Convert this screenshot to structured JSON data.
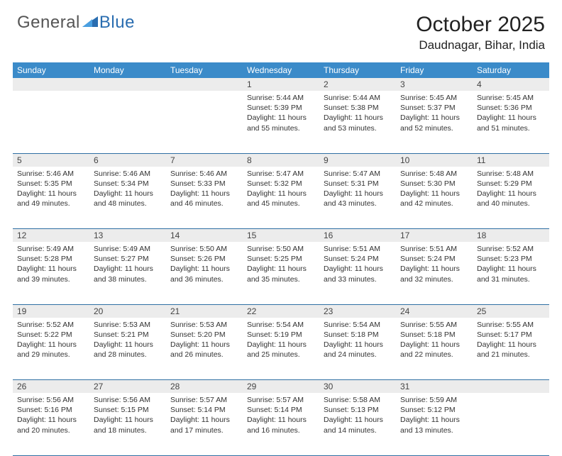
{
  "logo": {
    "text_left": "General",
    "text_right": "Blue"
  },
  "title": "October 2025",
  "location": "Daudnagar, Bihar, India",
  "colors": {
    "header_bg": "#3b8bc9",
    "header_text": "#ffffff",
    "daynum_bg": "#ececec",
    "border": "#2f6fa3",
    "body_text": "#333333",
    "logo_gray": "#555555",
    "logo_blue": "#2a6db0"
  },
  "fonts": {
    "title_size": 30,
    "location_size": 17,
    "header_size": 12,
    "cell_size": 10.5
  },
  "day_headers": [
    "Sunday",
    "Monday",
    "Tuesday",
    "Wednesday",
    "Thursday",
    "Friday",
    "Saturday"
  ],
  "weeks": [
    [
      null,
      null,
      null,
      {
        "n": "1",
        "sunrise": "5:44 AM",
        "sunset": "5:39 PM",
        "dayh": "11",
        "daym": "55"
      },
      {
        "n": "2",
        "sunrise": "5:44 AM",
        "sunset": "5:38 PM",
        "dayh": "11",
        "daym": "53"
      },
      {
        "n": "3",
        "sunrise": "5:45 AM",
        "sunset": "5:37 PM",
        "dayh": "11",
        "daym": "52"
      },
      {
        "n": "4",
        "sunrise": "5:45 AM",
        "sunset": "5:36 PM",
        "dayh": "11",
        "daym": "51"
      }
    ],
    [
      {
        "n": "5",
        "sunrise": "5:46 AM",
        "sunset": "5:35 PM",
        "dayh": "11",
        "daym": "49"
      },
      {
        "n": "6",
        "sunrise": "5:46 AM",
        "sunset": "5:34 PM",
        "dayh": "11",
        "daym": "48"
      },
      {
        "n": "7",
        "sunrise": "5:46 AM",
        "sunset": "5:33 PM",
        "dayh": "11",
        "daym": "46"
      },
      {
        "n": "8",
        "sunrise": "5:47 AM",
        "sunset": "5:32 PM",
        "dayh": "11",
        "daym": "45"
      },
      {
        "n": "9",
        "sunrise": "5:47 AM",
        "sunset": "5:31 PM",
        "dayh": "11",
        "daym": "43"
      },
      {
        "n": "10",
        "sunrise": "5:48 AM",
        "sunset": "5:30 PM",
        "dayh": "11",
        "daym": "42"
      },
      {
        "n": "11",
        "sunrise": "5:48 AM",
        "sunset": "5:29 PM",
        "dayh": "11",
        "daym": "40"
      }
    ],
    [
      {
        "n": "12",
        "sunrise": "5:49 AM",
        "sunset": "5:28 PM",
        "dayh": "11",
        "daym": "39"
      },
      {
        "n": "13",
        "sunrise": "5:49 AM",
        "sunset": "5:27 PM",
        "dayh": "11",
        "daym": "38"
      },
      {
        "n": "14",
        "sunrise": "5:50 AM",
        "sunset": "5:26 PM",
        "dayh": "11",
        "daym": "36"
      },
      {
        "n": "15",
        "sunrise": "5:50 AM",
        "sunset": "5:25 PM",
        "dayh": "11",
        "daym": "35"
      },
      {
        "n": "16",
        "sunrise": "5:51 AM",
        "sunset": "5:24 PM",
        "dayh": "11",
        "daym": "33"
      },
      {
        "n": "17",
        "sunrise": "5:51 AM",
        "sunset": "5:24 PM",
        "dayh": "11",
        "daym": "32"
      },
      {
        "n": "18",
        "sunrise": "5:52 AM",
        "sunset": "5:23 PM",
        "dayh": "11",
        "daym": "31"
      }
    ],
    [
      {
        "n": "19",
        "sunrise": "5:52 AM",
        "sunset": "5:22 PM",
        "dayh": "11",
        "daym": "29"
      },
      {
        "n": "20",
        "sunrise": "5:53 AM",
        "sunset": "5:21 PM",
        "dayh": "11",
        "daym": "28"
      },
      {
        "n": "21",
        "sunrise": "5:53 AM",
        "sunset": "5:20 PM",
        "dayh": "11",
        "daym": "26"
      },
      {
        "n": "22",
        "sunrise": "5:54 AM",
        "sunset": "5:19 PM",
        "dayh": "11",
        "daym": "25"
      },
      {
        "n": "23",
        "sunrise": "5:54 AM",
        "sunset": "5:18 PM",
        "dayh": "11",
        "daym": "24"
      },
      {
        "n": "24",
        "sunrise": "5:55 AM",
        "sunset": "5:18 PM",
        "dayh": "11",
        "daym": "22"
      },
      {
        "n": "25",
        "sunrise": "5:55 AM",
        "sunset": "5:17 PM",
        "dayh": "11",
        "daym": "21"
      }
    ],
    [
      {
        "n": "26",
        "sunrise": "5:56 AM",
        "sunset": "5:16 PM",
        "dayh": "11",
        "daym": "20"
      },
      {
        "n": "27",
        "sunrise": "5:56 AM",
        "sunset": "5:15 PM",
        "dayh": "11",
        "daym": "18"
      },
      {
        "n": "28",
        "sunrise": "5:57 AM",
        "sunset": "5:14 PM",
        "dayh": "11",
        "daym": "17"
      },
      {
        "n": "29",
        "sunrise": "5:57 AM",
        "sunset": "5:14 PM",
        "dayh": "11",
        "daym": "16"
      },
      {
        "n": "30",
        "sunrise": "5:58 AM",
        "sunset": "5:13 PM",
        "dayh": "11",
        "daym": "14"
      },
      {
        "n": "31",
        "sunrise": "5:59 AM",
        "sunset": "5:12 PM",
        "dayh": "11",
        "daym": "13"
      },
      null
    ]
  ],
  "labels": {
    "sunrise": "Sunrise:",
    "sunset": "Sunset:",
    "daylight_prefix": "Daylight:",
    "hours_word": "hours",
    "and_word": "and",
    "minutes_word": "minutes."
  }
}
